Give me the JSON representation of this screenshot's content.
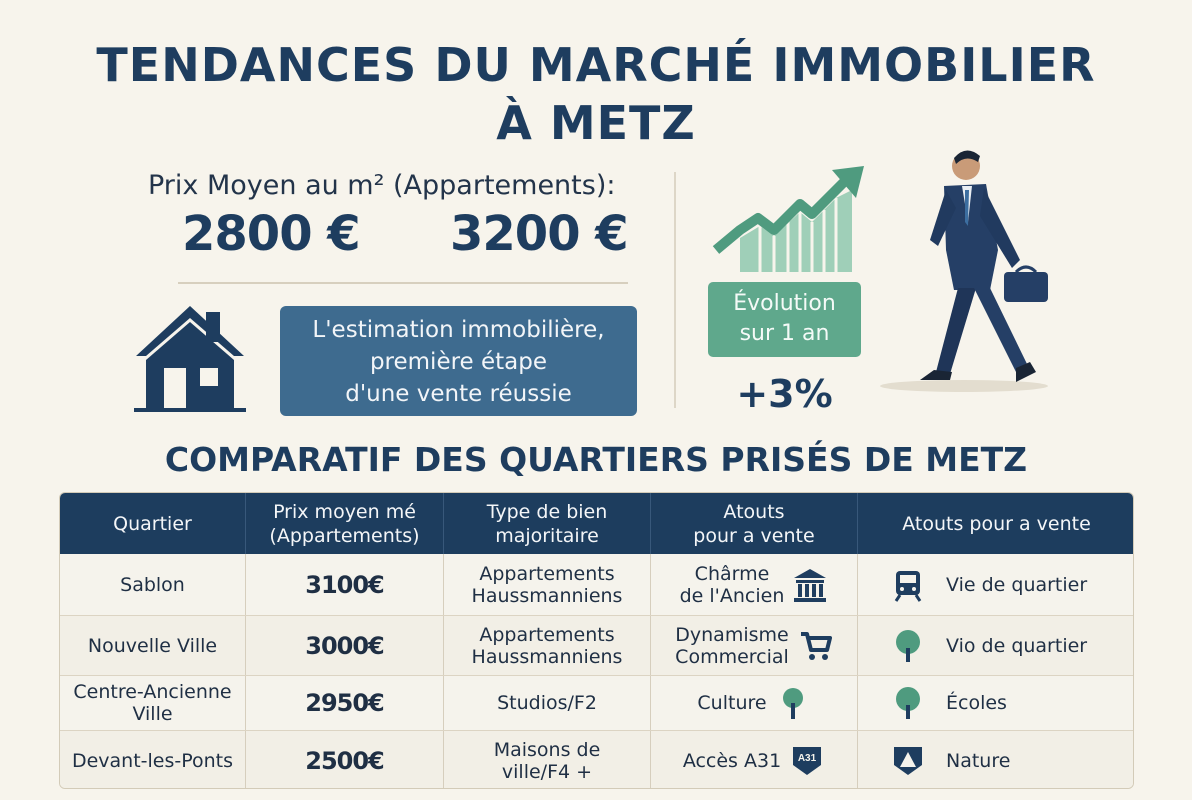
{
  "title": {
    "line1": "TENDANCES DU MARCHÉ IMMOBILIER",
    "line2": "À METZ"
  },
  "price": {
    "label": "Prix Moyen au m² (Appartements):",
    "low": "2800 €",
    "high": "3200 €"
  },
  "estimation": {
    "line1": "L'estimation immobilière,",
    "line2": "première étape",
    "line3": "d'une vente réussie"
  },
  "evolution": {
    "line1": "Évolution",
    "line2": "sur 1 an",
    "value": "+3%"
  },
  "subtitle": "COMPARATIF DES QUARTIERS PRISÉS DE METZ",
  "table": {
    "headers": {
      "quartier": "Quartier",
      "prix_a": "Prix moyen mé",
      "prix_b": "(Appartements)",
      "type_a": "Type de bien",
      "type_b": "majoritaire",
      "atouts_a": "Atouts",
      "atouts_b": "pour a vente",
      "atouts2": "Atouts pour a vente"
    },
    "rows": [
      {
        "quartier": "Sablon",
        "prix": "3100€",
        "type_a": "Appartements",
        "type_b": "Haussmanniens",
        "atout_a": "Chârme",
        "atout_b": "de l'Ancien",
        "atout_icon": "bank-icon",
        "atout2": "Vie de quartier",
        "atout2_icon": "tram-icon"
      },
      {
        "quartier": "Nouvelle Ville",
        "prix": "3000€",
        "type_a": "Appartements",
        "type_b": "Haussmanniens",
        "atout_a": "Dynamisme",
        "atout_b": "Commercial",
        "atout_icon": "shopping-cart-icon",
        "atout2": "Vio de quartier",
        "atout2_icon": "tree-icon"
      },
      {
        "quartier_a": "Centre-Ancienne",
        "quartier_b": "Ville",
        "prix": "2950€",
        "type": "Studios/F2",
        "atout": "Culture",
        "atout_icon": "tree-icon",
        "atout2": "Écoles",
        "atout2_icon": "tree-icon"
      },
      {
        "quartier": "Devant-les-Ponts",
        "prix": "2500€",
        "type_a": "Maisons de",
        "type_b": "ville/F4 +",
        "atout": "Accès A31",
        "atout_icon": "highway-a31-icon",
        "atout_badge": "A31",
        "atout2": "Nature",
        "atout2_icon": "nature-icon"
      }
    ]
  },
  "colors": {
    "navy": "#1e3d5f",
    "teal": "#5fa88c",
    "blue": "#3e6b8f",
    "background": "#f7f4ec"
  }
}
